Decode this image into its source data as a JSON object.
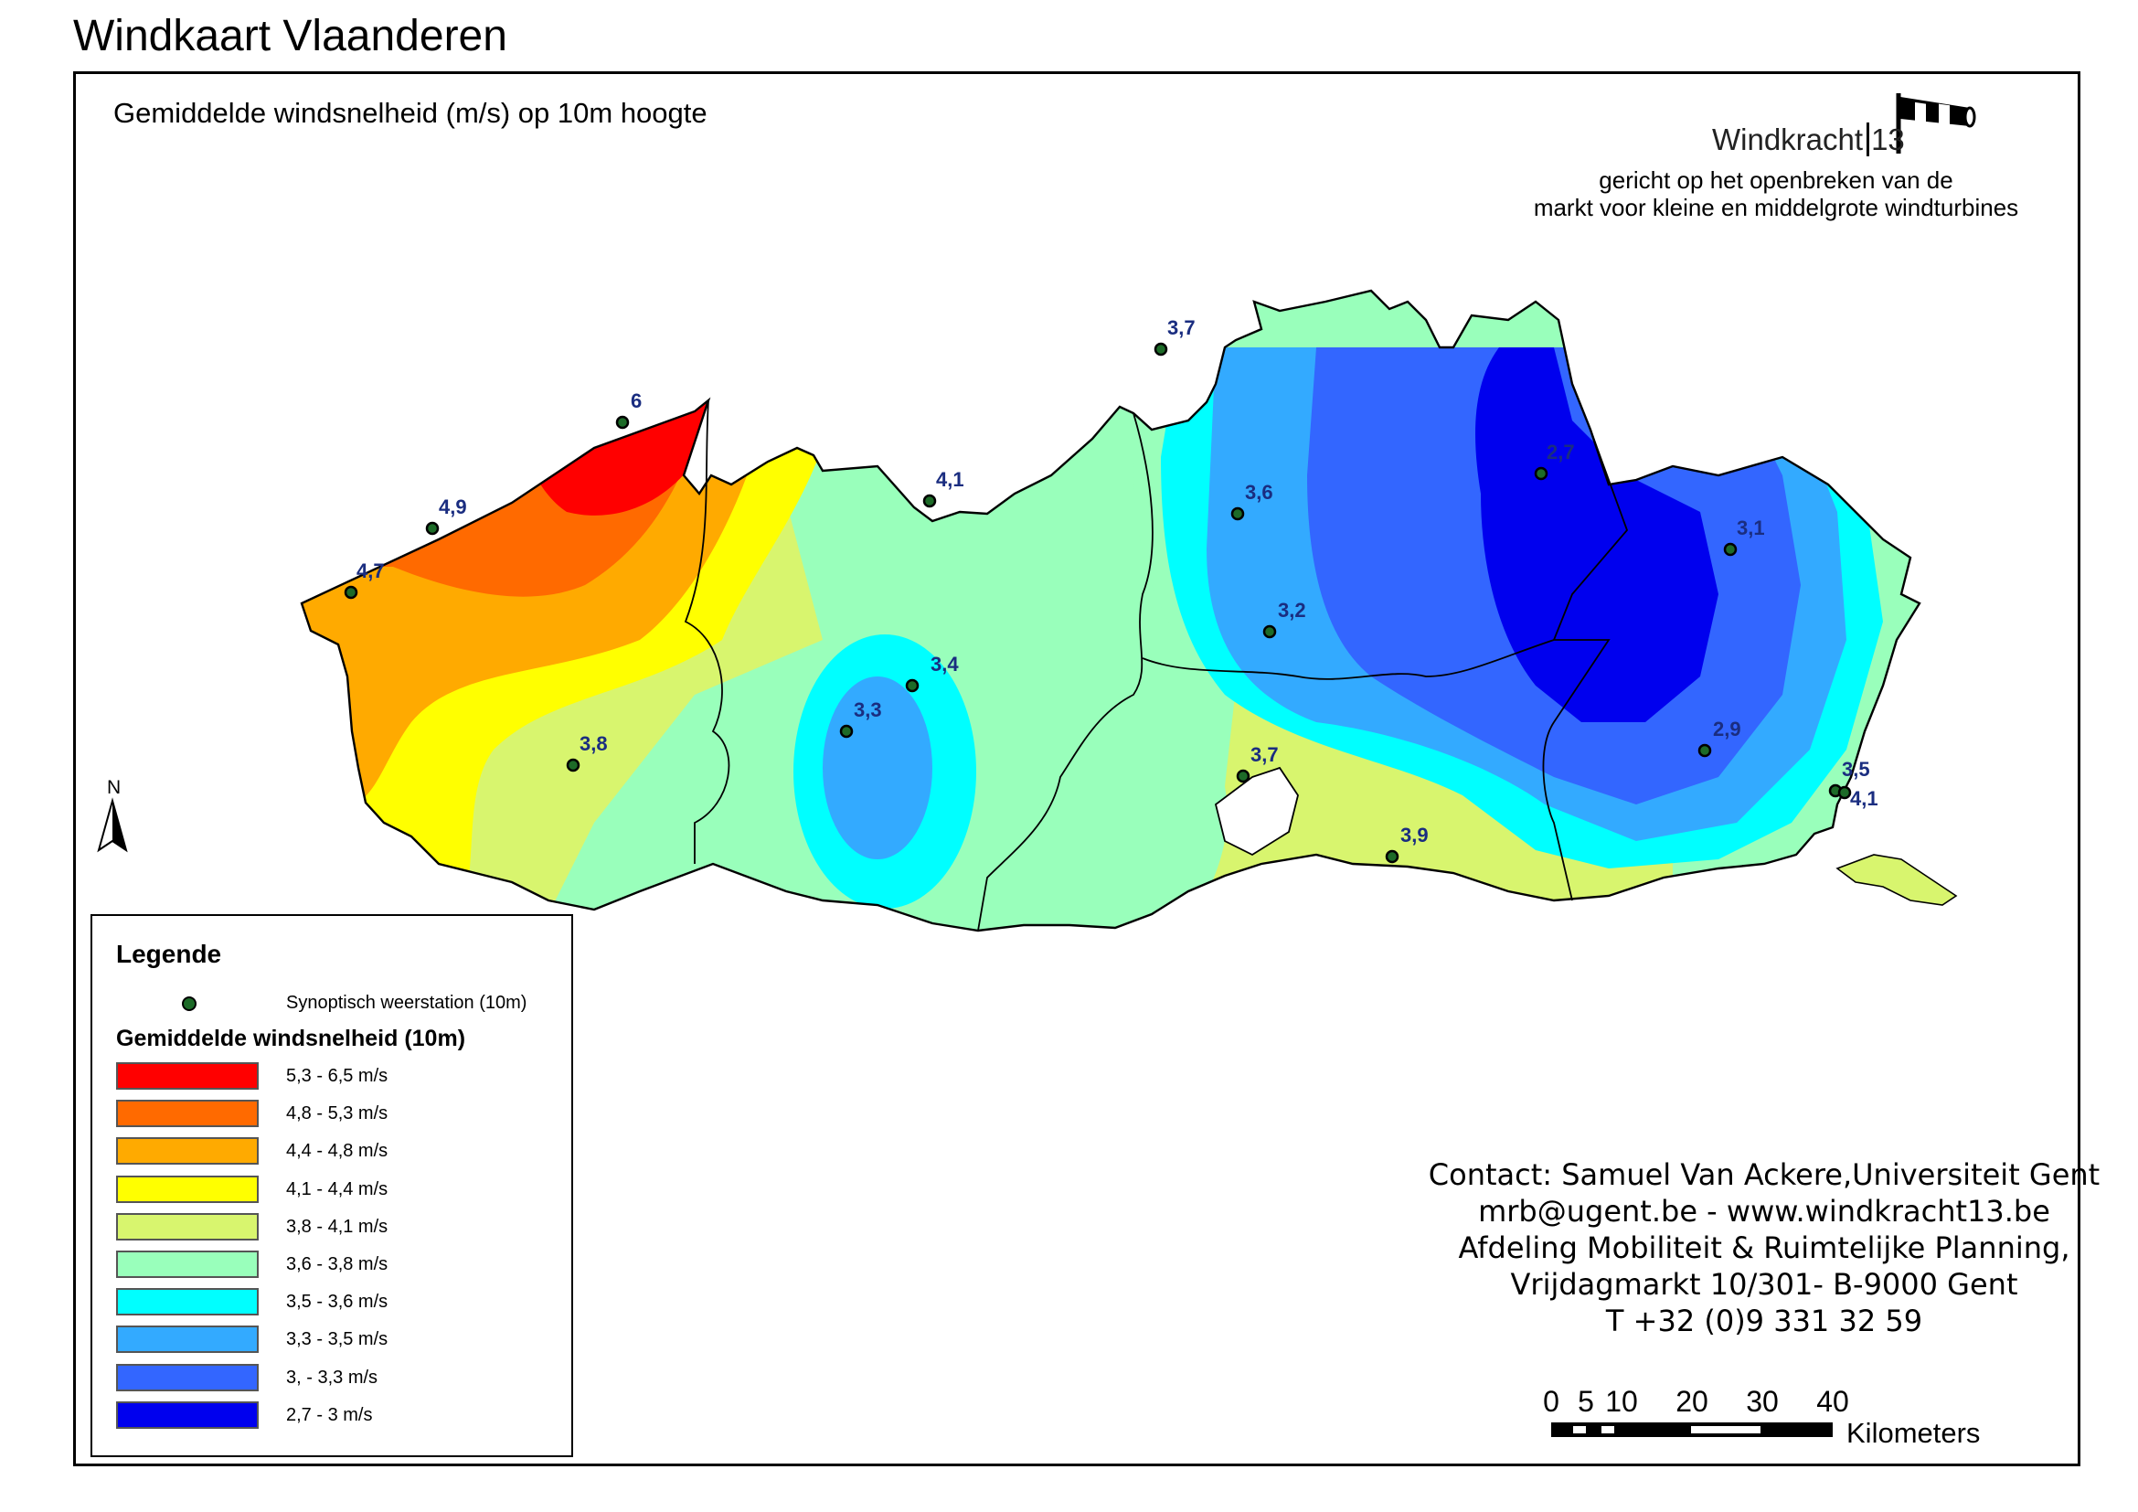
{
  "title": "Windkaart Vlaanderen",
  "subtitle": "Gemiddelde windsnelheid (m/s) op 10m hoogte",
  "brand": {
    "logo_text": "Windkracht",
    "logo_number": "13",
    "tagline_line1": "gericht op het openbreken van de",
    "tagline_line2": "markt voor kleine en middelgrote windturbines"
  },
  "north_label": "N",
  "legend": {
    "title": "Legende",
    "station_label": "Synoptisch weerstation (10m)",
    "scale_title": "Gemiddelde windsnelheid (10m)",
    "classes": [
      {
        "label": "5,3 - 6,5 m/s",
        "color": "#ff0000"
      },
      {
        "label": "4,8 - 5,3 m/s",
        "color": "#ff6a00"
      },
      {
        "label": "4,4 - 4,8 m/s",
        "color": "#ffaa00"
      },
      {
        "label": "4,1 - 4,4 m/s",
        "color": "#ffff00"
      },
      {
        "label": "3,8 - 4,1 m/s",
        "color": "#d8f56e"
      },
      {
        "label": "3,6 - 3,8 m/s",
        "color": "#99ffbb"
      },
      {
        "label": "3,5 - 3,6 m/s",
        "color": "#00ffff"
      },
      {
        "label": "3,3 - 3,5 m/s",
        "color": "#33aaff"
      },
      {
        "label": "3, - 3,3 m/s",
        "color": "#3366ff"
      },
      {
        "label": "2,7 - 3 m/s",
        "color": "#0000ee"
      }
    ]
  },
  "stations": [
    {
      "value": "6"
    },
    {
      "value": "4,9"
    },
    {
      "value": "4,7"
    },
    {
      "value": "3,8"
    },
    {
      "value": "4,1"
    },
    {
      "value": "3,4"
    },
    {
      "value": "3,3"
    },
    {
      "value": "3,7"
    },
    {
      "value": "3,6"
    },
    {
      "value": "3,2"
    },
    {
      "value": "3,7"
    },
    {
      "value": "3,9"
    },
    {
      "value": "2,7"
    },
    {
      "value": "3,1"
    },
    {
      "value": "2,9"
    },
    {
      "value": "3,5"
    },
    {
      "value": "4,1"
    }
  ],
  "contact": {
    "line1": "Contact: Samuel Van Ackere,Universiteit Gent",
    "line2": "mrb@ugent.be - www.windkracht13.be",
    "line3": "Afdeling Mobiliteit & Ruimtelijke Planning,",
    "line4": "Vrijdagmarkt 10/301- B-9000 Gent",
    "line5": "T +32 (0)9 331 32 59"
  },
  "scalebar": {
    "ticks": [
      "0",
      "5",
      "10",
      "20",
      "30",
      "40"
    ],
    "unit": "Kilometers"
  }
}
